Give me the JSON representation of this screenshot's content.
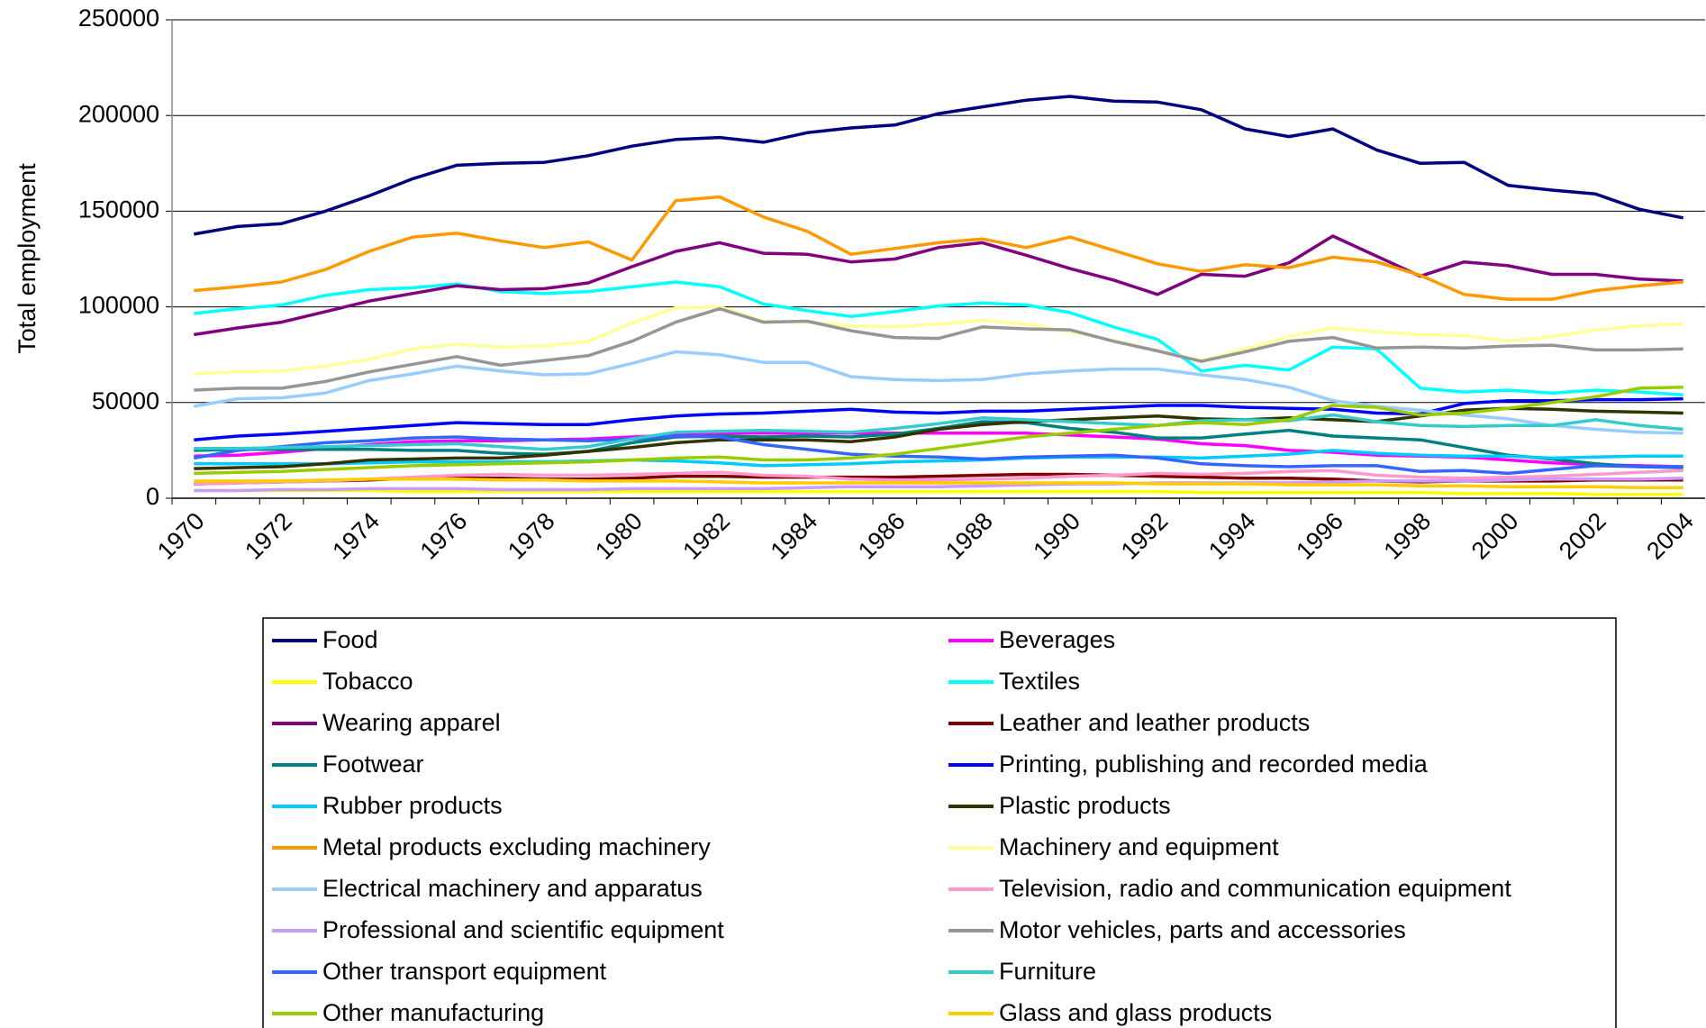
{
  "chart_data": {
    "type": "line",
    "y_label": "Total employment",
    "categories": [
      "1970",
      null,
      "1972",
      null,
      "1974",
      null,
      "1976",
      null,
      "1978",
      null,
      "1980",
      null,
      "1982",
      null,
      "1984",
      null,
      "1986",
      null,
      "1988",
      null,
      "1990",
      null,
      "1992",
      null,
      "1994",
      null,
      "1996",
      null,
      "1998",
      null,
      "2000",
      null,
      "2002",
      null,
      "2004"
    ],
    "ylim": [
      0,
      250000
    ],
    "yticks": [
      0,
      50000,
      100000,
      150000,
      200000,
      250000
    ],
    "grid": true,
    "series": [
      {
        "name": "Food",
        "color": "#000080",
        "values": [
          138000,
          142000,
          143500,
          150000,
          158000,
          167000,
          174000,
          175000,
          175500,
          179000,
          184000,
          187500,
          188500,
          186000,
          191000,
          193500,
          195000,
          201000,
          204500,
          208000,
          210000,
          207500,
          207000,
          203000,
          193000,
          189000,
          193000,
          182000,
          175000,
          175500,
          163500,
          161000,
          159000,
          151000,
          146500
        ]
      },
      {
        "name": "Beverages",
        "color": "#ff00ff",
        "values": [
          22000,
          22500,
          24000,
          26000,
          28000,
          29500,
          30000,
          30000,
          30500,
          31000,
          32000,
          33000,
          34000,
          34000,
          34000,
          34000,
          34000,
          34000,
          34000,
          34000,
          33000,
          32000,
          31000,
          28500,
          27500,
          25000,
          24000,
          22500,
          22000,
          21500,
          20000,
          18500,
          17500,
          17000,
          16500
        ]
      },
      {
        "name": "Tobacco",
        "color": "#ffff00",
        "values": [
          4000,
          4000,
          4000,
          4000,
          4000,
          3500,
          3500,
          3500,
          3500,
          3500,
          3500,
          3500,
          3500,
          3500,
          3500,
          3500,
          3500,
          3500,
          3500,
          3500,
          3500,
          3500,
          3500,
          3000,
          3000,
          3000,
          3000,
          3000,
          3000,
          2500,
          2500,
          2500,
          2000,
          2000,
          2000
        ]
      },
      {
        "name": "Textiles",
        "color": "#00ffff",
        "values": [
          96500,
          99000,
          101000,
          106000,
          109000,
          110000,
          112000,
          108000,
          107000,
          108000,
          110500,
          113000,
          110500,
          101500,
          98000,
          95000,
          97500,
          100500,
          102000,
          101000,
          97000,
          89500,
          83000,
          66500,
          69500,
          67000,
          79000,
          78000,
          57500,
          55500,
          56500,
          55000,
          56500,
          55500,
          54000
        ]
      },
      {
        "name": "Wearing apparel",
        "color": "#800080",
        "values": [
          85500,
          89000,
          92000,
          97500,
          103000,
          107000,
          111000,
          109000,
          109500,
          112500,
          121000,
          129000,
          133500,
          128000,
          127500,
          123500,
          125000,
          131000,
          133500,
          127000,
          120000,
          114000,
          106500,
          117000,
          116000,
          123000,
          137000,
          126500,
          116000,
          123500,
          121500,
          117000,
          117000,
          114500,
          113500
        ]
      },
      {
        "name": "Leather and leather products",
        "color": "#800000",
        "values": [
          7500,
          8000,
          8500,
          9000,
          9500,
          10500,
          10500,
          10500,
          10000,
          10000,
          10500,
          11500,
          11500,
          11000,
          11000,
          11000,
          11000,
          11500,
          12000,
          12500,
          12500,
          12000,
          11500,
          11000,
          10500,
          10500,
          10000,
          9000,
          8500,
          9000,
          9000,
          9000,
          9500,
          9500,
          9500
        ]
      },
      {
        "name": "Footwear",
        "color": "#008080",
        "values": [
          25000,
          25500,
          25500,
          25500,
          25500,
          25000,
          25000,
          23500,
          23000,
          24500,
          29000,
          32000,
          32500,
          32000,
          32500,
          32000,
          33500,
          36500,
          40000,
          39500,
          36500,
          34500,
          31500,
          31500,
          33500,
          35500,
          32500,
          31500,
          30500,
          26500,
          22500,
          20500,
          18000,
          16500,
          16000
        ]
      },
      {
        "name": "Printing, publishing and recorded media",
        "color": "#0000ff",
        "values": [
          30500,
          32500,
          33500,
          35000,
          36500,
          38000,
          39500,
          39000,
          38500,
          38500,
          41000,
          43000,
          44000,
          44500,
          45500,
          46500,
          45000,
          44500,
          45500,
          45500,
          46500,
          47500,
          48500,
          48500,
          47500,
          47000,
          46500,
          44500,
          44000,
          49500,
          51000,
          51000,
          51500,
          51500,
          52000
        ]
      },
      {
        "name": "Rubber products",
        "color": "#00ccff",
        "values": [
          18000,
          18000,
          18000,
          18000,
          18500,
          19000,
          19000,
          19000,
          19000,
          19500,
          20000,
          19500,
          18500,
          17000,
          17500,
          18000,
          19000,
          19500,
          20000,
          21000,
          21500,
          21500,
          21500,
          21000,
          22000,
          23000,
          25000,
          23500,
          22500,
          22000,
          22000,
          21000,
          21500,
          22000,
          22000
        ]
      },
      {
        "name": "Plastic products",
        "color": "#333300",
        "values": [
          15500,
          16000,
          16500,
          18000,
          20000,
          20500,
          21000,
          21000,
          22500,
          24500,
          26500,
          29000,
          30500,
          30500,
          30500,
          29500,
          32000,
          36000,
          38500,
          40000,
          41000,
          42000,
          43000,
          41500,
          41000,
          42000,
          41000,
          40000,
          43000,
          46000,
          47000,
          46500,
          45500,
          45000,
          44500
        ]
      },
      {
        "name": "Metal products excluding machinery",
        "color": "#ff9900",
        "values": [
          108500,
          110500,
          113000,
          119500,
          129000,
          136500,
          138500,
          134500,
          131000,
          134000,
          124500,
          155500,
          157500,
          147000,
          139500,
          127500,
          130500,
          133500,
          135500,
          131000,
          136500,
          129500,
          122500,
          118500,
          122000,
          120500,
          126000,
          123500,
          116500,
          106500,
          104000,
          104000,
          108500,
          111000,
          113000
        ]
      },
      {
        "name": "Machinery and equipment",
        "color": "#ffff99",
        "values": [
          65000,
          66000,
          66500,
          69000,
          72500,
          78000,
          80500,
          79000,
          79500,
          82000,
          91500,
          99500,
          100000,
          92500,
          92000,
          90000,
          89500,
          91000,
          93000,
          91000,
          87000,
          82500,
          77000,
          72000,
          78000,
          84500,
          89000,
          87000,
          85500,
          85000,
          82000,
          84500,
          88000,
          90000,
          91000
        ]
      },
      {
        "name": "Electrical machinery and apparatus",
        "color": "#99ccff",
        "values": [
          48000,
          52000,
          52500,
          55000,
          61500,
          65000,
          69000,
          66500,
          64500,
          65000,
          70500,
          76500,
          75000,
          71000,
          71000,
          63500,
          62000,
          61500,
          62000,
          65000,
          66500,
          67500,
          67500,
          64500,
          62000,
          58000,
          51000,
          48000,
          46000,
          43500,
          41500,
          38000,
          36000,
          34500,
          34000
        ]
      },
      {
        "name": "Television, radio and communication equipment",
        "color": "#ff99cc",
        "values": [
          7500,
          8000,
          8500,
          9000,
          10000,
          11000,
          12000,
          12500,
          12000,
          12000,
          12500,
          13000,
          13500,
          12000,
          11500,
          10000,
          9500,
          9500,
          10000,
          10500,
          11500,
          12000,
          13000,
          12500,
          13000,
          14000,
          14500,
          12000,
          11000,
          10500,
          11000,
          11500,
          12500,
          13500,
          14500
        ]
      },
      {
        "name": "Professional and scientific equipment",
        "color": "#cc99ff",
        "values": [
          4000,
          4000,
          4500,
          4500,
          5000,
          5000,
          5000,
          4500,
          4500,
          4500,
          5000,
          5000,
          5000,
          5000,
          5500,
          6000,
          6000,
          6000,
          6500,
          7000,
          7500,
          7500,
          8000,
          8000,
          8000,
          8000,
          8500,
          9000,
          9000,
          9000,
          9500,
          10000,
          10000,
          10000,
          10500
        ]
      },
      {
        "name": "Motor vehicles, parts and accessories",
        "color": "#969696",
        "values": [
          56500,
          57500,
          57500,
          61000,
          66000,
          70000,
          74000,
          69500,
          72000,
          74500,
          82000,
          92000,
          99000,
          92000,
          92500,
          87500,
          84000,
          83500,
          89500,
          88500,
          88000,
          82000,
          77000,
          71500,
          76500,
          82000,
          84000,
          78500,
          79000,
          78500,
          79500,
          80000,
          77500,
          77500,
          78000
        ]
      },
      {
        "name": "Other transport equipment",
        "color": "#3366ff",
        "values": [
          21000,
          25000,
          27000,
          29000,
          30000,
          31500,
          32000,
          31000,
          30500,
          30000,
          31000,
          32500,
          32000,
          28000,
          25500,
          23000,
          22000,
          21500,
          20500,
          21500,
          22000,
          22500,
          21000,
          18000,
          17000,
          16500,
          17000,
          17000,
          14000,
          14500,
          13000,
          15000,
          17000,
          16500,
          16500
        ]
      },
      {
        "name": "Furniture",
        "color": "#33cccc",
        "values": [
          26000,
          26000,
          26500,
          27000,
          27500,
          28000,
          28500,
          27000,
          25500,
          27000,
          31000,
          34500,
          35000,
          35500,
          35000,
          34500,
          36500,
          39000,
          42000,
          41000,
          40000,
          39000,
          38000,
          40500,
          41000,
          40500,
          43500,
          40000,
          38000,
          37500,
          38000,
          38000,
          41000,
          38000,
          36000
        ]
      },
      {
        "name": "Other manufacturing",
        "color": "#99cc00",
        "values": [
          13000,
          13500,
          14000,
          15000,
          16000,
          17000,
          17500,
          18000,
          18500,
          19000,
          20000,
          21000,
          21500,
          20000,
          20000,
          21000,
          23000,
          26000,
          29000,
          32000,
          34000,
          36000,
          38000,
          39500,
          38500,
          41000,
          48500,
          47500,
          43500,
          44500,
          47000,
          50000,
          53000,
          57500,
          58000
        ]
      },
      {
        "name": "Glass and glass products",
        "color": "#ffcc00",
        "values": [
          9000,
          9000,
          9000,
          9500,
          10000,
          10000,
          10000,
          9500,
          9500,
          9000,
          9000,
          9000,
          8500,
          8000,
          8000,
          8000,
          8000,
          8000,
          8000,
          8000,
          8000,
          8000,
          7500,
          7500,
          7500,
          7000,
          7000,
          7000,
          6500,
          6500,
          6000,
          6000,
          6000,
          5500,
          5500
        ]
      }
    ]
  }
}
